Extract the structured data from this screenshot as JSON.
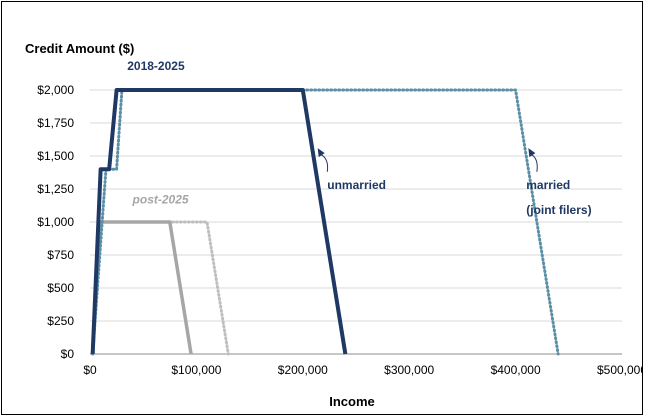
{
  "chart_data": {
    "type": "line",
    "ylabel": "Credit Amount ($)",
    "xlabel": "Income",
    "xlim": [
      0,
      500000
    ],
    "ylim": [
      0,
      2000
    ],
    "x_ticks": [
      0,
      100000,
      200000,
      300000,
      400000,
      500000
    ],
    "x_tick_labels": [
      "$0",
      "$100,000",
      "$200,000",
      "$300,000",
      "$400,000",
      "$500,000"
    ],
    "y_ticks": [
      0,
      250,
      500,
      750,
      1000,
      1250,
      1500,
      1750,
      2000
    ],
    "y_tick_labels": [
      "$0",
      "$250",
      "$500",
      "$750",
      "$1,000",
      "$1,250",
      "$1,500",
      "$1,750",
      "$2,000"
    ],
    "grid": "horizontal",
    "series": [
      {
        "color": "#1f3864",
        "style": "solid",
        "x": [
          2500,
          10000,
          12000,
          18000,
          25000,
          200000,
          240000
        ],
        "y": [
          0,
          1400,
          1400,
          1400,
          2000,
          2000,
          0
        ]
      },
      {
        "color": "#5b8fa8",
        "style": "dotted",
        "x": [
          2500,
          15000,
          25000,
          30000,
          400000,
          440000
        ],
        "y": [
          0,
          1400,
          1400,
          2000,
          2000,
          0
        ]
      },
      {
        "color": "#a6a6a6",
        "style": "solid",
        "x": [
          2500,
          10000,
          75000,
          95000
        ],
        "y": [
          0,
          1000,
          1000,
          0
        ]
      },
      {
        "color": "#bfbfbf",
        "style": "dotted",
        "x": [
          2500,
          10000,
          110000,
          130000
        ],
        "y": [
          0,
          1000,
          1000,
          0
        ]
      }
    ],
    "annotations": [
      {
        "text": "2018-2025",
        "x": 35000,
        "y": 2150,
        "color": "#1f3864",
        "italic": false
      },
      {
        "text": "post-2025",
        "x": 40000,
        "y": 1140,
        "color": "#a6a6a6",
        "italic": true
      },
      {
        "text": "unmarried",
        "x": 223000,
        "y": 1250,
        "color": "#1f3864",
        "italic": false
      },
      {
        "text": "married",
        "x": 410000,
        "y": 1250,
        "color": "#1f3864",
        "italic": false
      },
      {
        "text": "(joint filers)",
        "x": 410000,
        "y": 1060,
        "color": "#1f3864",
        "italic": false
      }
    ],
    "arrows": [
      {
        "from": [
          223000,
          1380
        ],
        "to": [
          214000,
          1560
        ],
        "color": "#1f3864"
      },
      {
        "from": [
          420000,
          1380
        ],
        "to": [
          412000,
          1560
        ],
        "color": "#1f3864"
      }
    ]
  }
}
